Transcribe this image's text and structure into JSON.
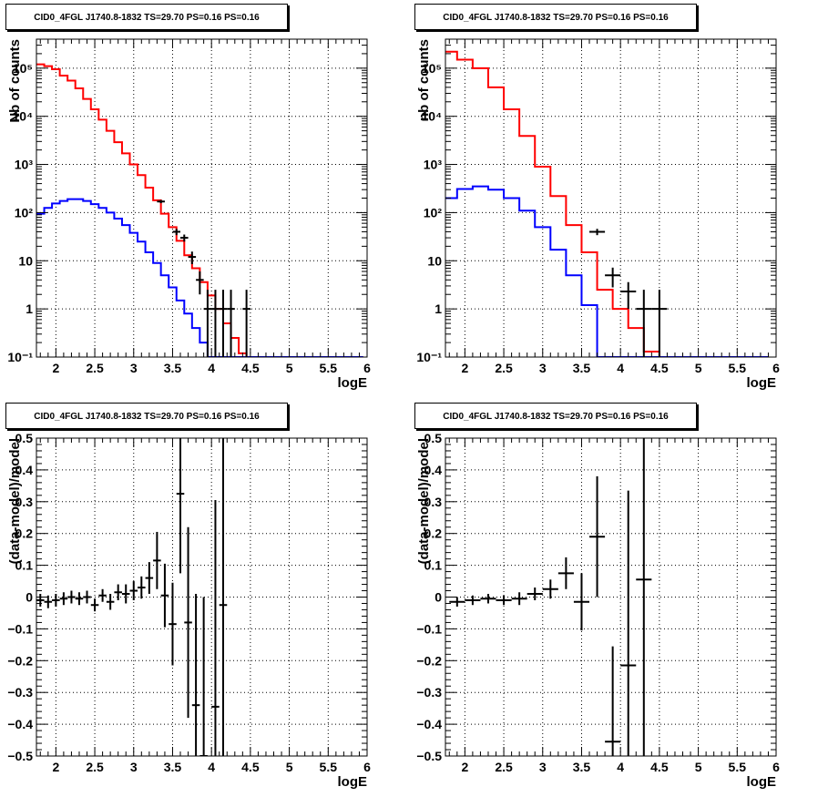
{
  "chart_data": [
    {
      "type": "line",
      "title": "CID0_4FGL J1740.8-1832 TS=29.70 PS=0.16 PS=0.16",
      "xlabel": "logE",
      "ylabel": "Nb of counts",
      "log_y": true,
      "xlim": [
        1.75,
        6.0
      ],
      "ylim": [
        0.1,
        400000
      ],
      "grid": true,
      "x_ticks": [
        "2",
        "2.5",
        "3",
        "3.5",
        "4",
        "4.5",
        "5",
        "5.5",
        "6"
      ],
      "y_ticks": [
        "10⁻¹",
        "1",
        "10",
        "10²",
        "10³",
        "10⁴",
        "10⁵"
      ],
      "bin_width": 0.1,
      "series": [
        {
          "color": "#ff0000",
          "style": "step",
          "x": [
            1.8,
            1.9,
            2.0,
            2.1,
            2.2,
            2.3,
            2.4,
            2.5,
            2.6,
            2.7,
            2.8,
            2.9,
            3.0,
            3.1,
            3.2,
            3.3,
            3.4,
            3.5,
            3.6,
            3.7,
            3.8,
            3.9,
            4.0,
            4.1,
            4.2,
            4.3,
            4.4,
            4.5,
            4.6,
            4.7,
            4.8,
            4.9,
            5.0,
            5.1,
            5.2,
            5.3,
            5.4,
            5.5,
            5.6,
            5.7,
            5.8,
            5.9
          ],
          "values": [
            120000,
            110000,
            95000,
            70000,
            55000,
            38000,
            23000,
            14000,
            8500,
            5000,
            2900,
            1700,
            1000,
            600,
            330,
            180,
            95,
            50,
            26,
            13,
            7,
            3.6,
            1.9,
            1,
            0.5,
            0.25,
            0.12,
            0.08,
            0.08,
            0.08,
            0.08,
            0.08,
            0.08,
            0.08,
            0.08,
            0.08,
            0.08,
            0.08,
            0.08,
            0.08,
            0.08,
            0.08
          ]
        },
        {
          "color": "#0000ff",
          "style": "step",
          "x": [
            1.8,
            1.9,
            2.0,
            2.1,
            2.2,
            2.3,
            2.4,
            2.5,
            2.6,
            2.7,
            2.8,
            2.9,
            3.0,
            3.1,
            3.2,
            3.3,
            3.4,
            3.5,
            3.6,
            3.7,
            3.8,
            3.9,
            4.0,
            4.1,
            4.2,
            4.3,
            4.4,
            4.5,
            4.6,
            4.7,
            4.8,
            4.9,
            5.0,
            5.1,
            5.2,
            5.3,
            5.4,
            5.5,
            5.6,
            5.7,
            5.8,
            5.9
          ],
          "values": [
            95,
            125,
            155,
            175,
            190,
            190,
            175,
            150,
            125,
            100,
            75,
            55,
            38,
            25,
            15,
            9,
            5,
            2.8,
            1.5,
            0.8,
            0.4,
            0.2,
            0.1,
            0.1,
            0.1,
            0.1,
            0.1,
            0.1,
            0.1,
            0.1,
            0.1,
            0.1,
            0.1,
            0.1,
            0.1,
            0.1,
            0.1,
            0.1,
            0.1,
            0.1,
            0.1,
            0.1
          ]
        },
        {
          "color": "#000000",
          "style": "errorbar",
          "x": [
            3.35,
            3.55,
            3.65,
            3.75,
            3.85,
            3.95,
            4.05,
            4.15,
            4.25,
            4.45
          ],
          "values": [
            170,
            40,
            30,
            12,
            4,
            1,
            1,
            1,
            1,
            1
          ],
          "err_low": [
            13,
            6,
            5,
            3.5,
            2,
            0.99,
            0.99,
            0.99,
            0.99,
            0.99
          ],
          "err_high": [
            13,
            6,
            5,
            3.5,
            2,
            1.5,
            1.5,
            1.5,
            1.5,
            1.5
          ]
        }
      ]
    },
    {
      "type": "line",
      "title": "CID0_4FGL J1740.8-1832 TS=29.70 PS=0.16 PS=0.16",
      "xlabel": "logE",
      "ylabel": "nb of counts",
      "log_y": true,
      "xlim": [
        1.75,
        6.0
      ],
      "ylim": [
        0.1,
        400000
      ],
      "grid": true,
      "x_ticks": [
        "2",
        "2.5",
        "3",
        "3.5",
        "4",
        "4.5",
        "5",
        "5.5",
        "6"
      ],
      "y_ticks": [
        "10⁻¹",
        "1",
        "10",
        "10²",
        "10³",
        "10⁴",
        "10⁵"
      ],
      "bin_width": 0.2,
      "series": [
        {
          "color": "#ff0000",
          "style": "step",
          "x": [
            1.8,
            2.0,
            2.2,
            2.4,
            2.6,
            2.8,
            3.0,
            3.2,
            3.4,
            3.6,
            3.8,
            4.0,
            4.2,
            4.4,
            4.6,
            4.8,
            5.0,
            5.2,
            5.4,
            5.6,
            5.8
          ],
          "values": [
            220000,
            150000,
            100000,
            40000,
            14000,
            3900,
            900,
            220,
            55,
            15,
            2.5,
            1.0,
            0.4,
            0.13,
            0.08,
            0.08,
            0.08,
            0.08,
            0.08,
            0.08,
            0.08
          ]
        },
        {
          "color": "#0000ff",
          "style": "step",
          "x": [
            1.8,
            2.0,
            2.2,
            2.4,
            2.6,
            2.8,
            3.0,
            3.2,
            3.4,
            3.6,
            3.8,
            4.0,
            4.2,
            4.4,
            4.6,
            4.8,
            5.0,
            5.2,
            5.4,
            5.6,
            5.8
          ],
          "values": [
            200,
            310,
            350,
            300,
            200,
            110,
            50,
            17,
            5,
            1.2,
            0.1,
            0.1,
            0.1,
            0.1,
            0.1,
            0.1,
            0.1,
            0.1,
            0.1,
            0.1,
            0.1
          ]
        },
        {
          "color": "#000000",
          "style": "errorbar",
          "x": [
            3.7,
            3.9,
            4.1,
            4.3,
            4.5
          ],
          "values": [
            40,
            5,
            2.3,
            1,
            1
          ],
          "err_low": [
            6,
            2.2,
            1.3,
            0.99,
            0.99
          ],
          "err_high": [
            6,
            2.2,
            1.3,
            1.5,
            1.5
          ]
        }
      ]
    },
    {
      "type": "scatter",
      "title": "CID0_4FGL J1740.8-1832 TS=29.70 PS=0.16 PS=0.16",
      "xlabel": "logE",
      "ylabel": "(data-model)/model",
      "xlim": [
        1.75,
        6.0
      ],
      "ylim": [
        -0.5,
        0.5
      ],
      "grid": true,
      "x_ticks": [
        "2",
        "2.5",
        "3",
        "3.5",
        "4",
        "4.5",
        "5",
        "5.5",
        "6"
      ],
      "y_ticks": [
        "−0.5",
        "−0.4",
        "−0.3",
        "−0.2",
        "−0.1",
        "0",
        "0.1",
        "0.2",
        "0.3",
        "0.4",
        "0.5"
      ],
      "bin_width": 0.1,
      "points": {
        "x": [
          1.8,
          1.9,
          2.0,
          2.1,
          2.2,
          2.3,
          2.4,
          2.5,
          2.6,
          2.7,
          2.8,
          2.9,
          3.0,
          3.1,
          3.2,
          3.3,
          3.4,
          3.5,
          3.6,
          3.7,
          3.8,
          3.9,
          4.05,
          4.15
        ],
        "y": [
          -0.01,
          -0.015,
          -0.01,
          -0.005,
          0.0,
          -0.005,
          0.0,
          -0.025,
          0.005,
          -0.015,
          0.015,
          0.01,
          0.02,
          0.03,
          0.06,
          0.115,
          0.005,
          -0.085,
          0.325,
          -0.08,
          -0.34,
          -0.5,
          -0.345,
          -0.025
        ],
        "err": [
          0.02,
          0.02,
          0.02,
          0.02,
          0.02,
          0.02,
          0.02,
          0.02,
          0.02,
          0.025,
          0.025,
          0.03,
          0.03,
          0.035,
          0.05,
          0.09,
          0.1,
          0.13,
          0.25,
          0.3,
          0.35,
          0.5,
          0.65,
          0.7
        ]
      }
    },
    {
      "type": "scatter",
      "title": "CID0_4FGL J1740.8-1832 TS=29.70 PS=0.16 PS=0.16",
      "xlabel": "logE",
      "ylabel": "(data-model)/model",
      "xlim": [
        1.75,
        6.0
      ],
      "ylim": [
        -0.5,
        0.5
      ],
      "grid": true,
      "x_ticks": [
        "2",
        "2.5",
        "3",
        "3.5",
        "4",
        "4.5",
        "5",
        "5.5",
        "6"
      ],
      "y_ticks": [
        "−0.5",
        "−0.4",
        "−0.3",
        "−0.2",
        "−0.1",
        "0",
        "0.1",
        "0.2",
        "0.3",
        "0.4",
        "0.5"
      ],
      "bin_width": 0.2,
      "points": {
        "x": [
          1.9,
          2.1,
          2.3,
          2.5,
          2.7,
          2.9,
          3.1,
          3.3,
          3.5,
          3.7,
          3.9,
          4.1,
          4.3
        ],
        "y": [
          -0.015,
          -0.01,
          -0.005,
          -0.01,
          -0.005,
          0.01,
          0.025,
          0.075,
          -0.015,
          0.19,
          -0.455,
          -0.215,
          0.055
        ],
        "err": [
          0.015,
          0.015,
          0.015,
          0.015,
          0.02,
          0.02,
          0.03,
          0.05,
          0.09,
          0.19,
          0.3,
          0.55,
          0.9
        ]
      }
    }
  ]
}
